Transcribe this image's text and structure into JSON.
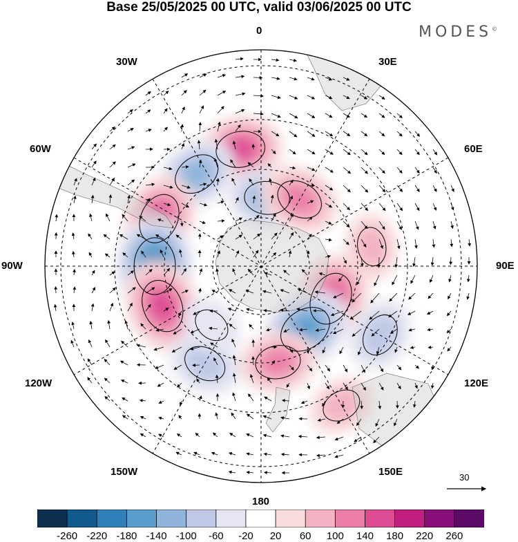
{
  "title": "Base 25/05/2025 00 UTC, valid 03/06/2025 00 UTC",
  "brand": "MODES",
  "brand_mark": "©",
  "longitude_labels": {
    "lon_0": "0",
    "lon_30e": "30E",
    "lon_60e": "60E",
    "lon_90e": "90E",
    "lon_120e": "120E",
    "lon_150e": "150E",
    "lon_180": "180",
    "lon_150w": "150W",
    "lon_120w": "120W",
    "lon_90w": "90W",
    "lon_60w": "60W",
    "lon_30w": "30W"
  },
  "reference_vector": "30",
  "colorbar": {
    "ticks": [
      "-260",
      "-220",
      "-180",
      "-140",
      "-100",
      "-60",
      "-20",
      "20",
      "60",
      "100",
      "140",
      "180",
      "220",
      "260"
    ],
    "colors": [
      "#0d2f4f",
      "#125a8c",
      "#2f7fb8",
      "#5a9ccc",
      "#8fb5dc",
      "#bfc9e6",
      "#e6e6f2",
      "#ffffff",
      "#f8dcdc",
      "#f3b3c2",
      "#eb7fa9",
      "#dd4c93",
      "#c11e7f",
      "#8b0f7a",
      "#5b0a66"
    ]
  },
  "chart_data": {
    "type": "map",
    "projection": "south polar stereographic",
    "field": "anomaly with wind vectors",
    "anomaly_centres": [
      {
        "lon": -10,
        "lat": -48,
        "value": 140
      },
      {
        "lon": -35,
        "lat": -50,
        "value": -120
      },
      {
        "lon": -65,
        "lat": -50,
        "value": 150
      },
      {
        "lon": -90,
        "lat": -52,
        "value": -200
      },
      {
        "lon": -112,
        "lat": -52,
        "value": 170
      },
      {
        "lon": 5,
        "lat": -65,
        "value": -110
      },
      {
        "lon": 30,
        "lat": -62,
        "value": 120
      },
      {
        "lon": 80,
        "lat": -50,
        "value": 60
      },
      {
        "lon": 115,
        "lat": -62,
        "value": 170
      },
      {
        "lon": 145,
        "lat": -62,
        "value": -170
      },
      {
        "lon": 120,
        "lat": -42,
        "value": -90
      },
      {
        "lon": 150,
        "lat": -35,
        "value": 60
      },
      {
        "lon": 170,
        "lat": -55,
        "value": 110
      },
      {
        "lon": -150,
        "lat": -50,
        "value": -90
      },
      {
        "lon": -140,
        "lat": -62,
        "value": -40
      }
    ]
  }
}
